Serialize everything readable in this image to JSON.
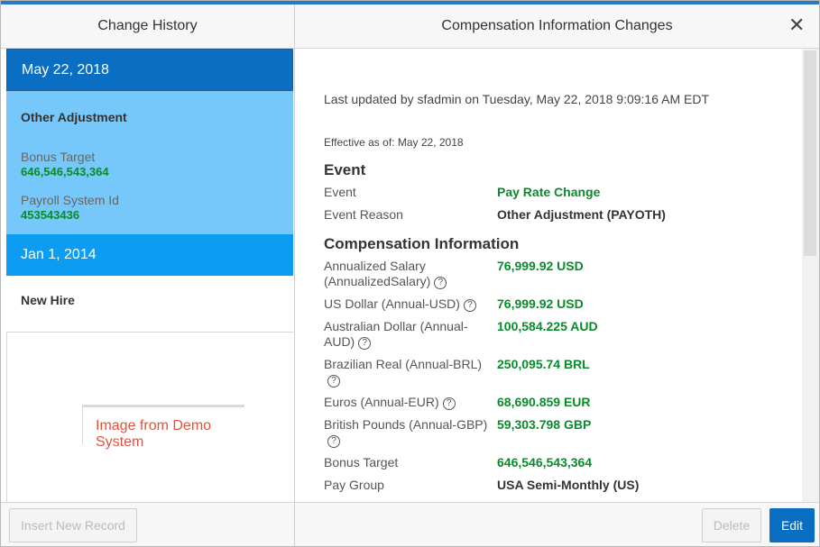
{
  "left_panel": {
    "title": "Change History",
    "records": [
      {
        "date": "May 22, 2018",
        "title": "Other Adjustment",
        "fields": [
          {
            "label": "Bonus Target",
            "value": "646,546,543,364"
          },
          {
            "label": "Payroll System Id",
            "value": "453543436"
          }
        ]
      },
      {
        "date": "Jan 1, 2014",
        "title": "New Hire"
      }
    ],
    "watermark": "Image from Demo System",
    "insert_button": "Insert New Record"
  },
  "right_panel": {
    "title": "Compensation Information Changes",
    "close_icon": "close-icon",
    "last_updated": "Last updated by sfadmin on Tuesday, May 22, 2018 9:09:16 AM EDT",
    "effective": "Effective as of: May 22, 2018",
    "event_section": {
      "heading": "Event",
      "rows": [
        {
          "label": "Event",
          "value": "Pay Rate Change"
        },
        {
          "label": "Event Reason",
          "value": "Other Adjustment (PAYOTH)"
        }
      ]
    },
    "comp_section": {
      "heading": "Compensation Information",
      "rows": [
        {
          "label": "Annualized Salary (AnnualizedSalary)",
          "value": "76,999.92 USD"
        },
        {
          "label": "US Dollar (Annual-USD)",
          "value": "76,999.92 USD"
        },
        {
          "label": "Australian Dollar (Annual-AUD)",
          "value": "100,584.225 AUD"
        },
        {
          "label": "Brazilian Real (Annual-BRL)",
          "value": "250,095.74 BRL"
        },
        {
          "label": "Euros (Annual-EUR)",
          "value": "68,690.859 EUR"
        },
        {
          "label": "British Pounds (Annual-GBP)",
          "value": "59,303.798 GBP"
        },
        {
          "label": "Bonus Target",
          "value": "646,546,543,364"
        },
        {
          "label": "Pay Group",
          "value": "USA Semi-Monthly (US)"
        }
      ]
    },
    "help_icon": "?",
    "delete_button": "Delete",
    "edit_button": "Edit"
  },
  "colors": {
    "selected_record": "#0a6ec3",
    "selected_body": "#76c8fb",
    "second_record": "#0c9cf1",
    "value_green": "#0a8a2c",
    "primary_button": "#0a6ec3",
    "top_accent": "#2b78c5"
  }
}
